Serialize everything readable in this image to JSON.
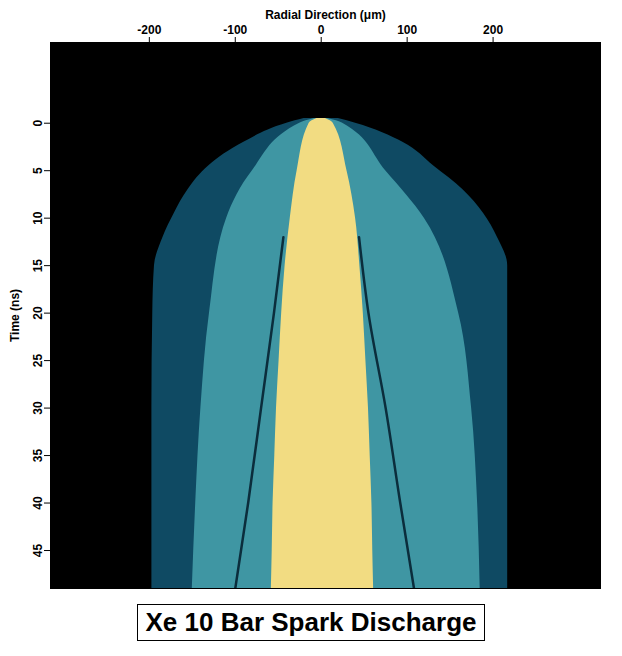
{
  "chart_data": {
    "type": "area",
    "title": "Xe 10 Bar Spark Discharge",
    "xlabel": "Radial Direction (μm)",
    "ylabel": "Time (ns)",
    "xlim": [
      -315,
      325
    ],
    "xticks": [
      -200,
      -100,
      0,
      100,
      200
    ],
    "ylim": [
      -8.5,
      49
    ],
    "yticks": [
      0,
      5,
      10,
      15,
      20,
      25,
      30,
      35,
      40,
      45
    ],
    "grid": false,
    "regions": [
      {
        "color": "#0f4a63",
        "time": [
          -0.5,
          0,
          2,
          4.5,
          7,
          9.5,
          12,
          15,
          20,
          30,
          40,
          49
        ],
        "left": [
          -20,
          -40,
          -90,
          -131,
          -155,
          -171,
          -184,
          -194,
          -196,
          -197,
          -197,
          -197
        ],
        "right": [
          20,
          40,
          95,
          131,
          165,
          189,
          205,
          217,
          217,
          217,
          217,
          217
        ]
      },
      {
        "color": "#3f96a3",
        "time": [
          -0.5,
          0,
          5,
          10,
          20,
          30,
          40,
          49
        ],
        "left": [
          -8,
          -25,
          -80,
          -110,
          -130,
          -140,
          -146,
          -150
        ],
        "right": [
          8,
          25,
          75,
          120,
          160,
          175,
          182,
          185
        ]
      },
      {
        "color": "#f2dc82",
        "time": [
          -0.5,
          0,
          5,
          10,
          15,
          20,
          25,
          30,
          35,
          40,
          45,
          49
        ],
        "left": [
          -5,
          -14,
          -28,
          -36,
          -42,
          -46,
          -49,
          -52,
          -54,
          -56,
          -57,
          -58
        ],
        "right": [
          5,
          14,
          30,
          40,
          45,
          49,
          52,
          55,
          57,
          59,
          60,
          61
        ]
      }
    ],
    "lines": [
      {
        "color": "#0b2d3c",
        "time": [
          12,
          20,
          30,
          40,
          49
        ],
        "values": [
          -44,
          -55,
          -70,
          -85,
          -100
        ]
      },
      {
        "color": "#0b2d3c",
        "time": [
          12,
          20,
          30,
          40,
          49
        ],
        "values": [
          44,
          55,
          75,
          92,
          108
        ]
      }
    ]
  }
}
